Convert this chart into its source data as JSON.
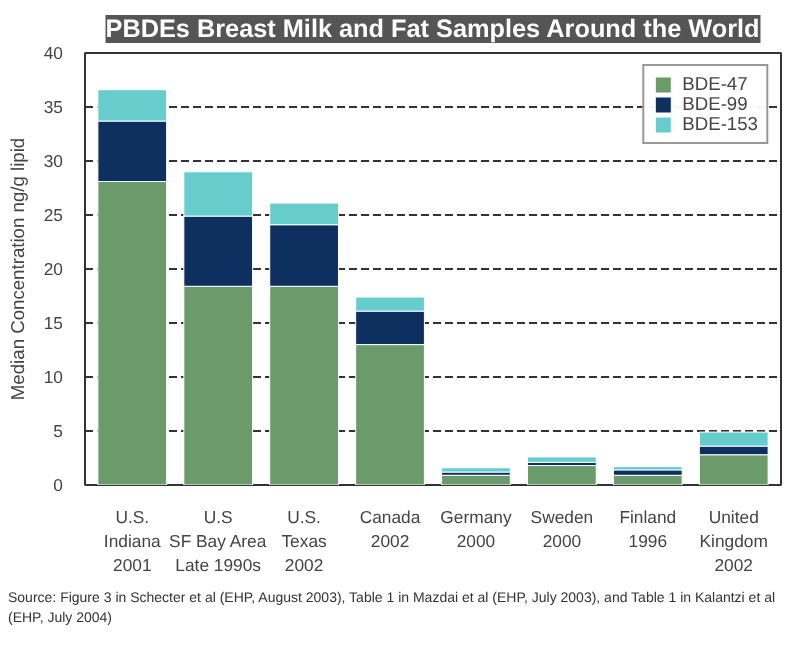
{
  "chart_data": {
    "type": "bar",
    "stacked": true,
    "title": "PBDEs Breast Milk and Fat Samples Around the World",
    "ylabel": "Median Concentration ng/g lipid",
    "categories": [
      "U.S.\nIndiana\n2001",
      "U.S\nSF Bay Area\nLate 1990s",
      "U.S.\nTexas\n2002",
      "Canada\n2002",
      "Germany\n2000",
      "Sweden\n2000",
      "Finland\n1996",
      "United\nKingdom\n2002"
    ],
    "series": [
      {
        "name": "BDE-47",
        "color": "#6b9a6b",
        "values": [
          28.1,
          18.4,
          18.4,
          13.0,
          0.9,
          1.8,
          0.9,
          2.8
        ]
      },
      {
        "name": "BDE-99",
        "color": "#0d3060",
        "values": [
          5.6,
          6.5,
          5.7,
          3.1,
          0.3,
          0.3,
          0.5,
          0.8
        ]
      },
      {
        "name": "BDE-153",
        "color": "#66cccc",
        "values": [
          2.9,
          4.1,
          2.0,
          1.3,
          0.4,
          0.5,
          0.3,
          1.3
        ]
      }
    ],
    "ylim": [
      0,
      40
    ],
    "yticks": [
      0,
      5,
      10,
      15,
      20,
      25,
      30,
      35,
      40
    ],
    "grid": "y",
    "legend": "top right",
    "annotations": [
      "Source: Figure 3 in Schecter et al (EHP, August 2003), Table 1 in Mazdai et al (EHP, July 2003), and Table 1 in Kalantzi et al (EHP, July 2004)"
    ]
  }
}
